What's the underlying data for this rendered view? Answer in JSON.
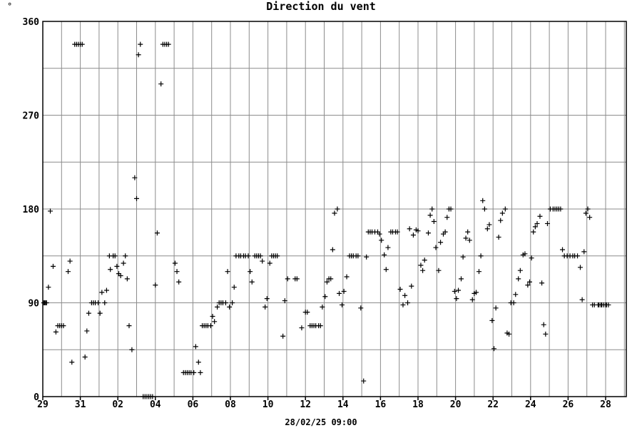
{
  "corner_symbol": "°",
  "chart_data": {
    "type": "scatter",
    "title": "Direction du vent",
    "xlabel": "28/02/25 09:00",
    "ylabel": "",
    "ylim": [
      0,
      360
    ],
    "y_ticks": [
      0,
      90,
      180,
      270,
      360
    ],
    "x_tick_labels": [
      "29",
      "31",
      "02",
      "04",
      "06",
      "08",
      "10",
      "12",
      "14",
      "16",
      "18",
      "20",
      "22",
      "24",
      "26",
      "28"
    ],
    "x_unit": "days from first tick (29)",
    "xlim": [
      0,
      31.5
    ],
    "grid": true,
    "marker": "+",
    "color": "#000000",
    "points": [
      [
        0.05,
        90
      ],
      [
        0.1,
        90
      ],
      [
        0.15,
        90
      ],
      [
        0.2,
        90
      ],
      [
        0.3,
        105
      ],
      [
        0.4,
        178
      ],
      [
        0.55,
        125
      ],
      [
        0.7,
        62
      ],
      [
        0.8,
        68
      ],
      [
        0.9,
        68
      ],
      [
        1.0,
        68
      ],
      [
        1.1,
        68
      ],
      [
        1.35,
        120
      ],
      [
        1.45,
        130
      ],
      [
        1.55,
        33
      ],
      [
        1.7,
        338
      ],
      [
        1.8,
        338
      ],
      [
        1.9,
        338
      ],
      [
        2.0,
        338
      ],
      [
        2.1,
        338
      ],
      [
        2.25,
        38
      ],
      [
        2.35,
        63
      ],
      [
        2.45,
        80
      ],
      [
        2.6,
        90
      ],
      [
        2.7,
        90
      ],
      [
        2.8,
        90
      ],
      [
        2.95,
        90
      ],
      [
        3.05,
        80
      ],
      [
        3.15,
        100
      ],
      [
        3.3,
        90
      ],
      [
        3.4,
        102
      ],
      [
        3.55,
        135
      ],
      [
        3.6,
        122
      ],
      [
        3.75,
        135
      ],
      [
        3.85,
        135
      ],
      [
        3.95,
        125
      ],
      [
        4.05,
        118
      ],
      [
        4.15,
        116
      ],
      [
        4.3,
        128
      ],
      [
        4.4,
        135
      ],
      [
        4.5,
        113
      ],
      [
        4.6,
        68
      ],
      [
        4.75,
        45
      ],
      [
        4.9,
        210
      ],
      [
        5.0,
        190
      ],
      [
        5.1,
        328
      ],
      [
        5.2,
        338
      ],
      [
        5.35,
        0
      ],
      [
        5.45,
        0
      ],
      [
        5.55,
        0
      ],
      [
        5.65,
        0
      ],
      [
        5.75,
        0
      ],
      [
        5.85,
        0
      ],
      [
        6.0,
        107
      ],
      [
        6.1,
        157
      ],
      [
        6.3,
        300
      ],
      [
        6.4,
        338
      ],
      [
        6.5,
        338
      ],
      [
        6.6,
        338
      ],
      [
        6.7,
        338
      ],
      [
        7.05,
        128
      ],
      [
        7.15,
        120
      ],
      [
        7.25,
        110
      ],
      [
        7.5,
        23
      ],
      [
        7.6,
        23
      ],
      [
        7.7,
        23
      ],
      [
        7.8,
        23
      ],
      [
        7.9,
        23
      ],
      [
        8.05,
        23
      ],
      [
        8.15,
        48
      ],
      [
        8.3,
        33
      ],
      [
        8.4,
        23
      ],
      [
        8.5,
        68
      ],
      [
        8.6,
        68
      ],
      [
        8.7,
        68
      ],
      [
        8.8,
        68
      ],
      [
        8.95,
        68
      ],
      [
        9.05,
        77
      ],
      [
        9.15,
        72
      ],
      [
        9.3,
        86
      ],
      [
        9.4,
        90
      ],
      [
        9.5,
        90
      ],
      [
        9.6,
        90
      ],
      [
        9.75,
        90
      ],
      [
        9.85,
        120
      ],
      [
        9.95,
        86
      ],
      [
        10.1,
        90
      ],
      [
        10.2,
        105
      ],
      [
        10.3,
        135
      ],
      [
        10.45,
        135
      ],
      [
        10.55,
        135
      ],
      [
        10.7,
        135
      ],
      [
        10.8,
        135
      ],
      [
        10.95,
        135
      ],
      [
        11.05,
        120
      ],
      [
        11.15,
        110
      ],
      [
        11.3,
        135
      ],
      [
        11.4,
        135
      ],
      [
        11.5,
        135
      ],
      [
        11.6,
        135
      ],
      [
        11.7,
        130
      ],
      [
        11.85,
        86
      ],
      [
        11.95,
        94
      ],
      [
        12.1,
        128
      ],
      [
        12.2,
        135
      ],
      [
        12.3,
        135
      ],
      [
        12.4,
        135
      ],
      [
        12.5,
        135
      ],
      [
        12.8,
        58
      ],
      [
        12.9,
        92
      ],
      [
        13.05,
        113
      ],
      [
        13.45,
        113
      ],
      [
        13.55,
        113
      ],
      [
        13.8,
        66
      ],
      [
        14.0,
        81
      ],
      [
        14.1,
        81
      ],
      [
        14.25,
        68
      ],
      [
        14.35,
        68
      ],
      [
        14.45,
        68
      ],
      [
        14.55,
        68
      ],
      [
        14.7,
        68
      ],
      [
        14.8,
        68
      ],
      [
        14.9,
        86
      ],
      [
        15.05,
        96
      ],
      [
        15.15,
        110
      ],
      [
        15.25,
        113
      ],
      [
        15.35,
        113
      ],
      [
        15.45,
        141
      ],
      [
        15.55,
        176
      ],
      [
        15.7,
        180
      ],
      [
        15.8,
        99
      ],
      [
        15.95,
        88
      ],
      [
        16.05,
        101
      ],
      [
        16.2,
        115
      ],
      [
        16.35,
        135
      ],
      [
        16.45,
        135
      ],
      [
        16.55,
        135
      ],
      [
        16.7,
        135
      ],
      [
        16.8,
        135
      ],
      [
        16.95,
        85
      ],
      [
        17.1,
        15
      ],
      [
        17.25,
        134
      ],
      [
        17.35,
        158
      ],
      [
        17.45,
        158
      ],
      [
        17.55,
        158
      ],
      [
        17.7,
        158
      ],
      [
        17.85,
        158
      ],
      [
        17.95,
        156
      ],
      [
        18.05,
        150
      ],
      [
        18.2,
        136
      ],
      [
        18.3,
        122
      ],
      [
        18.4,
        143
      ],
      [
        18.55,
        158
      ],
      [
        18.65,
        158
      ],
      [
        18.8,
        158
      ],
      [
        18.9,
        158
      ],
      [
        19.05,
        103
      ],
      [
        19.2,
        88
      ],
      [
        19.3,
        97
      ],
      [
        19.45,
        90
      ],
      [
        19.55,
        161
      ],
      [
        19.65,
        106
      ],
      [
        19.75,
        155
      ],
      [
        19.9,
        160
      ],
      [
        20.0,
        159
      ],
      [
        20.15,
        126
      ],
      [
        20.25,
        121
      ],
      [
        20.35,
        131
      ],
      [
        20.55,
        157
      ],
      [
        20.65,
        174
      ],
      [
        20.75,
        180
      ],
      [
        20.85,
        168
      ],
      [
        20.95,
        143
      ],
      [
        21.1,
        121
      ],
      [
        21.2,
        148
      ],
      [
        21.35,
        156
      ],
      [
        21.45,
        158
      ],
      [
        21.55,
        172
      ],
      [
        21.65,
        180
      ],
      [
        21.75,
        180
      ],
      [
        21.95,
        101
      ],
      [
        22.05,
        94
      ],
      [
        22.15,
        102
      ],
      [
        22.3,
        113
      ],
      [
        22.4,
        134
      ],
      [
        22.55,
        152
      ],
      [
        22.65,
        158
      ],
      [
        22.75,
        150
      ],
      [
        22.9,
        93
      ],
      [
        23.0,
        99
      ],
      [
        23.1,
        100
      ],
      [
        23.25,
        120
      ],
      [
        23.35,
        135
      ],
      [
        23.45,
        188
      ],
      [
        23.55,
        180
      ],
      [
        23.7,
        161
      ],
      [
        23.8,
        165
      ],
      [
        23.95,
        73
      ],
      [
        24.05,
        46
      ],
      [
        24.15,
        85
      ],
      [
        24.3,
        153
      ],
      [
        24.4,
        169
      ],
      [
        24.5,
        176
      ],
      [
        24.65,
        180
      ],
      [
        24.75,
        61
      ],
      [
        24.85,
        60
      ],
      [
        24.95,
        90
      ],
      [
        25.1,
        90
      ],
      [
        25.2,
        98
      ],
      [
        25.35,
        113
      ],
      [
        25.45,
        121
      ],
      [
        25.6,
        136
      ],
      [
        25.7,
        137
      ],
      [
        25.85,
        107
      ],
      [
        25.95,
        110
      ],
      [
        26.05,
        133
      ],
      [
        26.15,
        158
      ],
      [
        26.25,
        163
      ],
      [
        26.35,
        166
      ],
      [
        26.5,
        173
      ],
      [
        26.6,
        109
      ],
      [
        26.7,
        69
      ],
      [
        26.8,
        60
      ],
      [
        26.9,
        166
      ],
      [
        27.05,
        180
      ],
      [
        27.2,
        180
      ],
      [
        27.3,
        180
      ],
      [
        27.4,
        180
      ],
      [
        27.5,
        180
      ],
      [
        27.6,
        180
      ],
      [
        27.7,
        141
      ],
      [
        27.8,
        135
      ],
      [
        27.95,
        135
      ],
      [
        28.1,
        135
      ],
      [
        28.25,
        135
      ],
      [
        28.35,
        135
      ],
      [
        28.5,
        135
      ],
      [
        28.65,
        124
      ],
      [
        28.75,
        93
      ],
      [
        28.85,
        139
      ],
      [
        28.95,
        176
      ],
      [
        29.05,
        180
      ],
      [
        29.15,
        172
      ],
      [
        29.3,
        88
      ],
      [
        29.4,
        88
      ],
      [
        29.6,
        88
      ],
      [
        29.65,
        88
      ],
      [
        29.75,
        88
      ],
      [
        29.8,
        88
      ],
      [
        29.9,
        88
      ],
      [
        30.0,
        88
      ],
      [
        30.05,
        88
      ],
      [
        30.15,
        88
      ]
    ]
  }
}
